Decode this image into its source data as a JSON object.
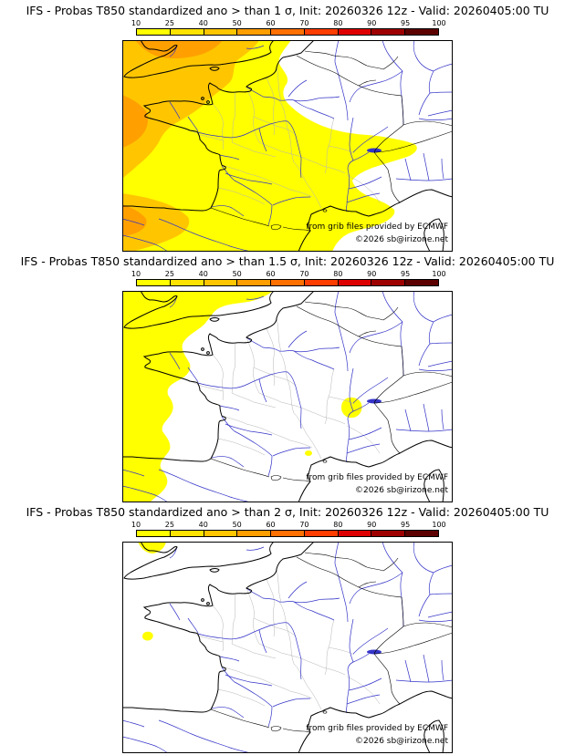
{
  "panels": [
    {
      "id": "sigma-1",
      "title": "IFS - Probas T850  standardized ano > than 1 σ, Init: 20260326 12z - Valid: 20260405:00 TU"
    },
    {
      "id": "sigma-1-5",
      "title": "IFS - Probas T850  standardized ano > than 1.5 σ, Init: 20260326 12z - Valid: 20260405:00 TU"
    },
    {
      "id": "sigma-2",
      "title": "IFS - Probas T850  standardized ano > than 2 σ, Init: 20260326 12z - Valid: 20260405:00 TU"
    }
  ],
  "scale": {
    "labels": [
      "10",
      "25",
      "40",
      "50",
      "60",
      "70",
      "80",
      "90",
      "95",
      "100"
    ],
    "colors": [
      "#ffff00",
      "#ffe300",
      "#ffc600",
      "#ff9e00",
      "#ff7000",
      "#ff3d00",
      "#de0000",
      "#9e0000",
      "#5c0000"
    ]
  },
  "attribution": {
    "source": "from grib files provided by ECMWF",
    "copyright": "©2026 sb@irizone.net"
  },
  "map_colors": {
    "background": "#ffffff",
    "coastline": "#000000",
    "rivers": "#3434c8",
    "departments": "#b4b4b4",
    "prob_light": "#ffff00",
    "prob_medium": "#ffc600",
    "prob_strong": "#ffa000"
  }
}
